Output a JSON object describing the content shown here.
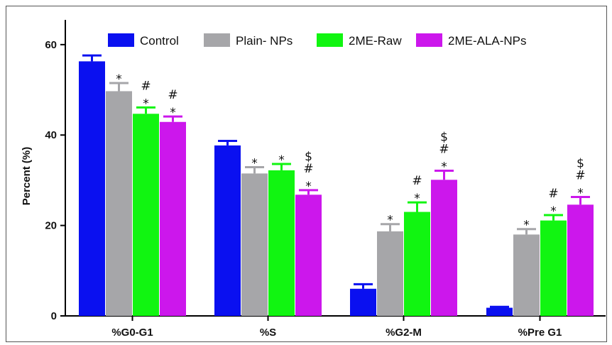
{
  "chart_data": {
    "type": "bar",
    "ylabel": "Percent (%)",
    "xlabel": "",
    "ylim": [
      0,
      65
    ],
    "yticks": [
      0,
      20,
      40,
      60
    ],
    "categories": [
      "%G0-G1",
      "%S",
      "%G2-M",
      "%Pre G1"
    ],
    "series": [
      {
        "name": "Control",
        "color": "#0a10f0",
        "values": [
          56.3,
          37.7,
          6.0,
          1.8
        ],
        "errors": [
          1.3,
          1.0,
          1.0,
          0.2
        ]
      },
      {
        "name": "Plain- NPs",
        "color": "#a6a6a9",
        "values": [
          49.7,
          31.5,
          18.7,
          18.0
        ],
        "errors": [
          1.8,
          1.4,
          1.6,
          1.2
        ]
      },
      {
        "name": "2ME-Raw",
        "color": "#11f511",
        "values": [
          44.7,
          32.2,
          23.0,
          21.1
        ],
        "errors": [
          1.4,
          1.4,
          2.1,
          1.2
        ]
      },
      {
        "name": "2ME-ALA-NPs",
        "color": "#cc17ec",
        "values": [
          42.9,
          26.8,
          30.1,
          24.6
        ],
        "errors": [
          1.2,
          1.0,
          2.0,
          1.7
        ]
      }
    ],
    "annotations": [
      [
        [],
        [],
        [],
        []
      ],
      [
        [
          "*"
        ],
        [
          "*"
        ],
        [
          "*"
        ],
        [
          "*"
        ]
      ],
      [
        [
          "*",
          "#"
        ],
        [
          "*"
        ],
        [
          "*",
          "#"
        ],
        [
          "*",
          "#"
        ]
      ],
      [
        [
          "*",
          "#"
        ],
        [
          "*",
          "#",
          "$"
        ],
        [
          "*",
          "#",
          "$"
        ],
        [
          "*",
          "#",
          "$"
        ]
      ]
    ],
    "grid": false,
    "legend_position": "top"
  }
}
